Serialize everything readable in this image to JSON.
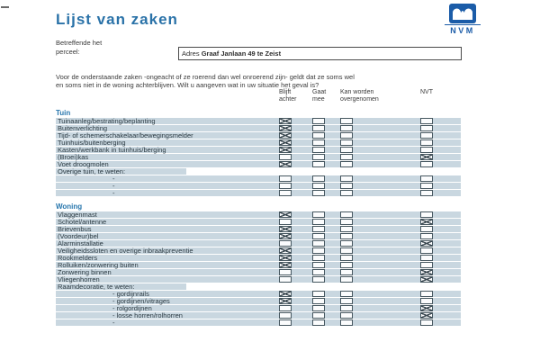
{
  "colors": {
    "title_blue": "#2a72a8",
    "section_blue": "#2776ad",
    "row_band": "#c9d7e0",
    "logo_blue": "#1b5ca8",
    "checkbox_border": "#45565f"
  },
  "header": {
    "title": "Lijst van zaken",
    "logo_text": "NVM",
    "field_label": "Betreffende het\nperceel:",
    "address_prefix": "Adres ",
    "address_value": "Graaf Janlaan 49 te Zeist"
  },
  "intro": {
    "line1": "Voor de onderstaande zaken -ongeacht of ze roerend dan wel onroerend zijn- geldt dat ze soms wel",
    "line2": "en soms niet in de woning achterblijven. Wilt u aangeven wat in uw situatie het geval is?"
  },
  "columns": [
    {
      "label": "Blijft\nachter"
    },
    {
      "label": "Gaat\nmee"
    },
    {
      "label": "Kan worden\novergenomen"
    },
    {
      "label": "NVT"
    }
  ],
  "sections": [
    {
      "name": "Tuin",
      "rows": [
        {
          "type": "item",
          "label": "Tuinaanleg/bestrating/beplanting",
          "checks": [
            true,
            false,
            false,
            false
          ]
        },
        {
          "type": "item",
          "label": "Buitenverlichting",
          "checks": [
            true,
            false,
            false,
            false
          ]
        },
        {
          "type": "item",
          "label": "Tijd- of schemerschakelaar/bewegingsmelder",
          "checks": [
            true,
            false,
            false,
            false
          ]
        },
        {
          "type": "item",
          "label": "Tuinhuis/buitenberging",
          "checks": [
            true,
            false,
            false,
            false
          ]
        },
        {
          "type": "item",
          "label": "Kasten/werkbank in tuinhuis/berging",
          "checks": [
            true,
            false,
            false,
            false
          ]
        },
        {
          "type": "item",
          "label": "(Broei)kas",
          "checks": [
            false,
            false,
            false,
            true
          ]
        },
        {
          "type": "item",
          "label": "Voet droogmolen",
          "checks": [
            true,
            false,
            false,
            false
          ]
        },
        {
          "type": "subheader",
          "label": "Overige tuin, te weten:"
        },
        {
          "type": "blank",
          "label": "-",
          "checks": [
            false,
            false,
            false,
            false
          ]
        },
        {
          "type": "blank",
          "label": "-",
          "checks": [
            false,
            false,
            false,
            false
          ]
        },
        {
          "type": "blank",
          "label": "-",
          "checks": [
            false,
            false,
            false,
            false
          ]
        }
      ]
    },
    {
      "name": "Woning",
      "rows": [
        {
          "type": "item",
          "label": "Vlaggenmast",
          "checks": [
            true,
            false,
            false,
            false
          ]
        },
        {
          "type": "item",
          "label": "Schotel/antenne",
          "checks": [
            false,
            false,
            false,
            true
          ]
        },
        {
          "type": "item",
          "label": "Brievenbus",
          "checks": [
            true,
            false,
            false,
            false
          ]
        },
        {
          "type": "item",
          "label": "(Voordeur)bel",
          "checks": [
            true,
            false,
            false,
            false
          ]
        },
        {
          "type": "item",
          "label": "Alarminstallatie",
          "checks": [
            false,
            false,
            false,
            true
          ]
        },
        {
          "type": "item",
          "label": "Veiligheidssloten en overige inbraakpreventie",
          "checks": [
            true,
            false,
            false,
            false
          ]
        },
        {
          "type": "item",
          "label": "Rookmelders",
          "checks": [
            true,
            false,
            false,
            false
          ]
        },
        {
          "type": "item",
          "label": "Rolluiken/zonwering buiten",
          "checks": [
            true,
            false,
            false,
            false
          ]
        },
        {
          "type": "item",
          "label": "Zonwering binnen",
          "checks": [
            false,
            false,
            false,
            true
          ]
        },
        {
          "type": "item",
          "label": "Vliegenhorren",
          "checks": [
            false,
            false,
            false,
            true
          ]
        },
        {
          "type": "subheader",
          "label": "Raamdecoratie, te weten:"
        },
        {
          "type": "sub",
          "label": "- gordijnrails",
          "checks": [
            true,
            false,
            false,
            false
          ]
        },
        {
          "type": "sub",
          "label": "- gordijnen/vitrages",
          "checks": [
            true,
            false,
            false,
            false
          ]
        },
        {
          "type": "sub",
          "label": "- rolgordijnen",
          "checks": [
            false,
            false,
            false,
            true
          ]
        },
        {
          "type": "sub",
          "label": "- losse horren/rolhorren",
          "checks": [
            false,
            false,
            false,
            true
          ]
        },
        {
          "type": "blank",
          "label": "-",
          "checks": [
            false,
            false,
            false,
            false
          ]
        }
      ]
    }
  ]
}
